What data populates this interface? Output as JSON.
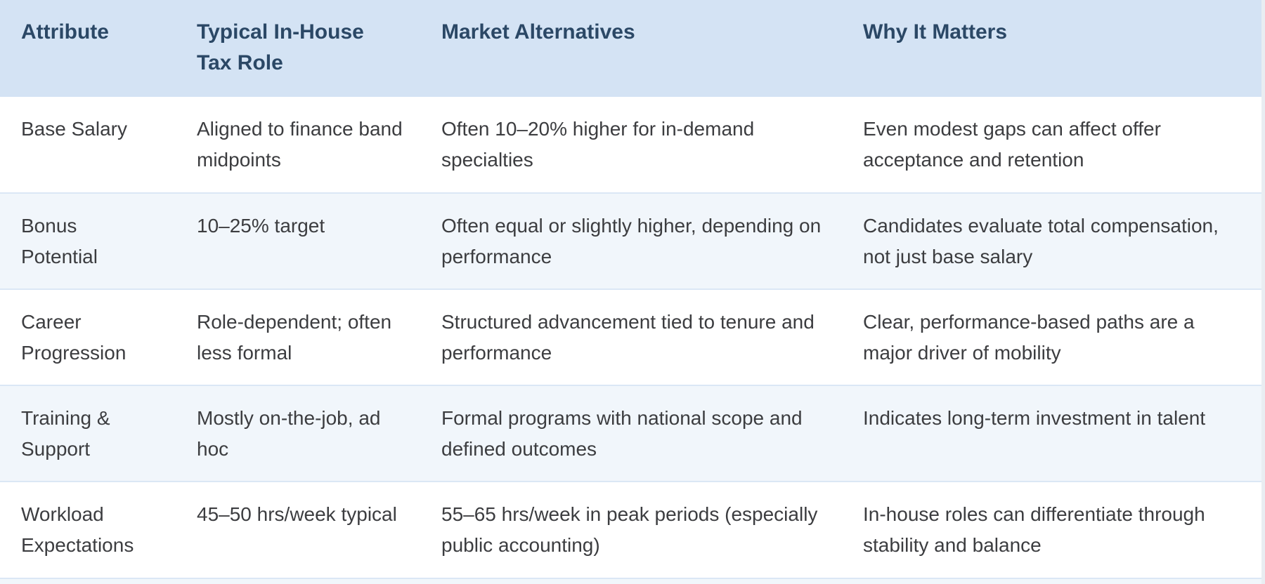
{
  "colors": {
    "header_bg": "#d4e3f4",
    "header_text": "#2b4866",
    "body_text": "#3c3d40",
    "alt_row_bg": "#f1f6fb",
    "row_bg": "#ffffff",
    "row_divider": "#dbe7f5",
    "page_bg": "#e9edf2"
  },
  "table": {
    "columns": [
      "Attribute",
      "Typical In-House Tax Role",
      "Market Alternatives",
      "Why It Matters"
    ],
    "rows": [
      {
        "cells": [
          "Base Salary",
          "Aligned to finance band midpoints",
          "Often 10–20% higher for in-demand specialties",
          "Even modest gaps can affect offer acceptance and retention"
        ]
      },
      {
        "cells": [
          "Bonus Potential",
          "10–25% target",
          "Often equal or slightly higher, depending on performance",
          "Candidates evaluate total compensation, not just base salary"
        ]
      },
      {
        "cells": [
          "Career Progression",
          "Role-dependent; often less formal",
          "Structured advancement tied to tenure and performance",
          "Clear, performance-based paths are a major driver of mobility"
        ]
      },
      {
        "cells": [
          "Training & Support",
          "Mostly on-the-job, ad hoc",
          "Formal programs with national scope and defined outcomes",
          "Indicates long-term investment in talent"
        ]
      },
      {
        "cells": [
          "Workload Expectations",
          "45–50 hrs/week typical",
          "55–65 hrs/week in peak periods (especially public accounting)",
          "In-house roles can differentiate through stability and balance"
        ]
      }
    ]
  }
}
